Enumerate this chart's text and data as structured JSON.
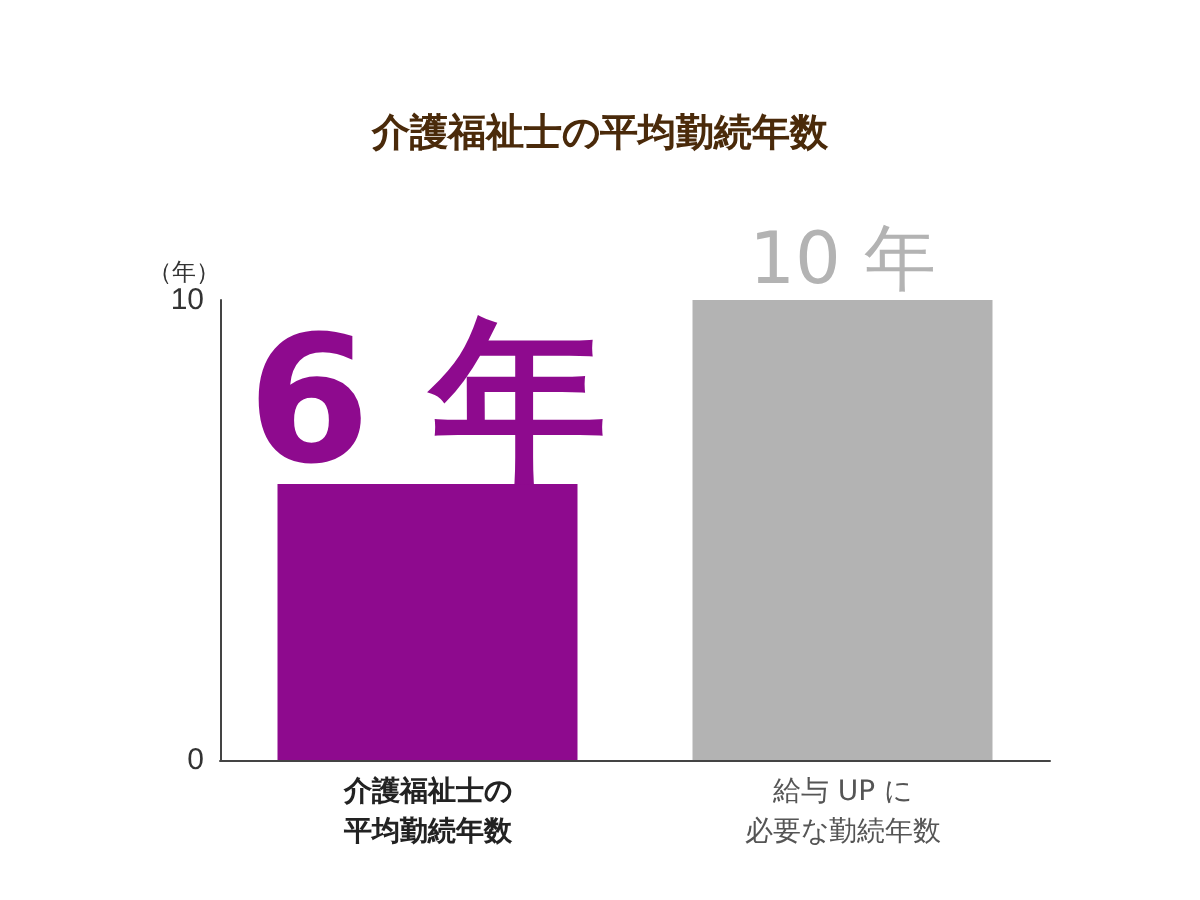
{
  "chart_data": {
    "type": "bar",
    "title": "介護福祉士の平均勤続年数",
    "ylabel": "（年）",
    "categories": [
      "介護福祉士の平均勤続年数",
      "給与 UP に必要な勤続年数"
    ],
    "values": [
      6,
      10
    ],
    "colors": [
      "#8e0a8e",
      "#b3b3b3"
    ],
    "value_labels": [
      "6 年",
      "10 年"
    ],
    "ylim": [
      0,
      10
    ],
    "yticks": [
      0,
      10
    ],
    "grid": false
  }
}
